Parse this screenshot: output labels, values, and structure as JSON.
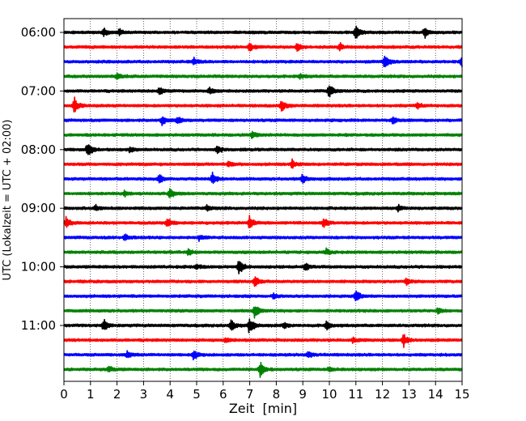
{
  "chart_data": {
    "type": "line",
    "title": "",
    "xlabel": "Zeit  [min]",
    "ylabel": "UTC (Lokalzeit = UTC + 02:00)",
    "xlim": [
      0,
      15
    ],
    "x_ticks": [
      0,
      1,
      2,
      3,
      4,
      5,
      6,
      7,
      8,
      9,
      10,
      11,
      12,
      13,
      14,
      15
    ],
    "x_grid": true,
    "y_grid": false,
    "legend": "none",
    "trace_minutes": 15,
    "trace_count": 24,
    "first_trace_start": "06:00",
    "y_tick_labels": [
      "06:00",
      "07:00",
      "08:00",
      "09:00",
      "10:00",
      "11:00"
    ],
    "trace_colors": [
      "#000000",
      "#ff0000",
      "#0000ff",
      "#008000"
    ],
    "series": [
      {
        "start": "06:00",
        "color": "#000000",
        "events": [
          {
            "t": 11.0,
            "amp": 1.0
          },
          {
            "t": 13.6,
            "amp": 0.6
          },
          {
            "t": 1.5,
            "amp": 0.5
          },
          {
            "t": 2.1,
            "amp": 0.4
          }
        ]
      },
      {
        "start": "06:15",
        "color": "#ff0000",
        "events": [
          {
            "t": 7.0,
            "amp": 0.55
          },
          {
            "t": 8.8,
            "amp": 0.6
          },
          {
            "t": 10.4,
            "amp": 0.45
          }
        ]
      },
      {
        "start": "06:30",
        "color": "#0000ff",
        "events": [
          {
            "t": 12.1,
            "amp": 0.95
          },
          {
            "t": 15.0,
            "amp": 0.8
          },
          {
            "t": 4.9,
            "amp": 0.4
          }
        ]
      },
      {
        "start": "06:45",
        "color": "#008000",
        "events": [
          {
            "t": 2.0,
            "amp": 0.35
          },
          {
            "t": 8.9,
            "amp": 0.3
          }
        ]
      },
      {
        "start": "07:00",
        "color": "#000000",
        "events": [
          {
            "t": 10.0,
            "amp": 0.85
          },
          {
            "t": 3.6,
            "amp": 0.45
          },
          {
            "t": 5.5,
            "amp": 0.35
          }
        ]
      },
      {
        "start": "07:15",
        "color": "#ff0000",
        "events": [
          {
            "t": 0.4,
            "amp": 1.0
          },
          {
            "t": 8.2,
            "amp": 0.8
          },
          {
            "t": 13.3,
            "amp": 0.35
          }
        ]
      },
      {
        "start": "07:30",
        "color": "#0000ff",
        "events": [
          {
            "t": 3.7,
            "amp": 0.6
          },
          {
            "t": 4.3,
            "amp": 0.55
          },
          {
            "t": 12.4,
            "amp": 0.45
          }
        ]
      },
      {
        "start": "07:45",
        "color": "#008000",
        "events": [
          {
            "t": 7.1,
            "amp": 0.4
          }
        ]
      },
      {
        "start": "08:00",
        "color": "#000000",
        "events": [
          {
            "t": 0.9,
            "amp": 1.0
          },
          {
            "t": 2.5,
            "amp": 0.35
          },
          {
            "t": 5.8,
            "amp": 0.45
          }
        ]
      },
      {
        "start": "08:15",
        "color": "#ff0000",
        "events": [
          {
            "t": 8.6,
            "amp": 0.5
          },
          {
            "t": 6.2,
            "amp": 0.3
          }
        ]
      },
      {
        "start": "08:30",
        "color": "#0000ff",
        "events": [
          {
            "t": 3.6,
            "amp": 0.6
          },
          {
            "t": 5.6,
            "amp": 0.75
          },
          {
            "t": 9.0,
            "amp": 0.6
          }
        ]
      },
      {
        "start": "08:45",
        "color": "#008000",
        "events": [
          {
            "t": 4.0,
            "amp": 0.75
          },
          {
            "t": 2.3,
            "amp": 0.3
          }
        ]
      },
      {
        "start": "09:00",
        "color": "#000000",
        "events": [
          {
            "t": 1.2,
            "amp": 0.4
          },
          {
            "t": 5.4,
            "amp": 0.35
          },
          {
            "t": 12.6,
            "amp": 0.35
          }
        ]
      },
      {
        "start": "09:15",
        "color": "#ff0000",
        "events": [
          {
            "t": 0.1,
            "amp": 0.7
          },
          {
            "t": 3.9,
            "amp": 0.6
          },
          {
            "t": 7.0,
            "amp": 0.9
          },
          {
            "t": 9.8,
            "amp": 0.6
          }
        ]
      },
      {
        "start": "09:30",
        "color": "#0000ff",
        "events": [
          {
            "t": 2.3,
            "amp": 0.4
          },
          {
            "t": 5.1,
            "amp": 0.3
          }
        ]
      },
      {
        "start": "09:45",
        "color": "#008000",
        "events": [
          {
            "t": 4.7,
            "amp": 0.3
          },
          {
            "t": 9.9,
            "amp": 0.35
          }
        ]
      },
      {
        "start": "10:00",
        "color": "#000000",
        "events": [
          {
            "t": 6.6,
            "amp": 1.0
          },
          {
            "t": 9.1,
            "amp": 0.45
          },
          {
            "t": 5.0,
            "amp": 0.35
          }
        ]
      },
      {
        "start": "10:15",
        "color": "#ff0000",
        "events": [
          {
            "t": 7.2,
            "amp": 0.7
          },
          {
            "t": 12.9,
            "amp": 0.35
          }
        ]
      },
      {
        "start": "10:30",
        "color": "#0000ff",
        "events": [
          {
            "t": 11.0,
            "amp": 0.85
          },
          {
            "t": 7.9,
            "amp": 0.3
          }
        ]
      },
      {
        "start": "10:45",
        "color": "#008000",
        "events": [
          {
            "t": 7.2,
            "amp": 0.85
          },
          {
            "t": 14.1,
            "amp": 0.3
          }
        ]
      },
      {
        "start": "11:00",
        "color": "#000000",
        "events": [
          {
            "t": 1.5,
            "amp": 0.9
          },
          {
            "t": 6.3,
            "amp": 0.8
          },
          {
            "t": 7.0,
            "amp": 1.0
          },
          {
            "t": 9.9,
            "amp": 0.5
          },
          {
            "t": 8.3,
            "amp": 0.4
          }
        ]
      },
      {
        "start": "11:15",
        "color": "#ff0000",
        "events": [
          {
            "t": 12.8,
            "amp": 0.8
          },
          {
            "t": 10.9,
            "amp": 0.35
          },
          {
            "t": 6.1,
            "amp": 0.3
          }
        ]
      },
      {
        "start": "11:30",
        "color": "#0000ff",
        "events": [
          {
            "t": 4.9,
            "amp": 0.7
          },
          {
            "t": 2.4,
            "amp": 0.4
          },
          {
            "t": 9.2,
            "amp": 0.35
          }
        ]
      },
      {
        "start": "11:45",
        "color": "#008000",
        "events": [
          {
            "t": 7.4,
            "amp": 1.0
          },
          {
            "t": 1.7,
            "amp": 0.4
          },
          {
            "t": 10.0,
            "amp": 0.3
          }
        ]
      }
    ]
  }
}
